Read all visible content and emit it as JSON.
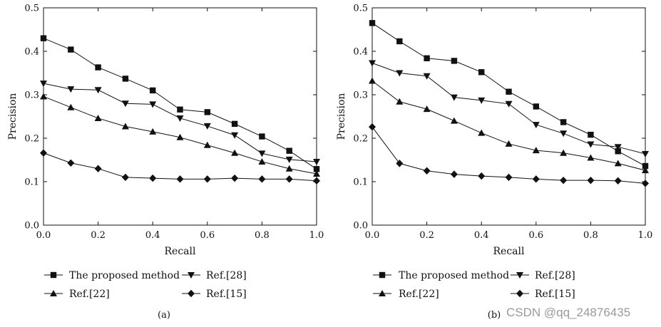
{
  "chart_data": [
    {
      "type": "line",
      "panel_label": "(a)",
      "title": "",
      "xlabel": "Recall",
      "ylabel": "Precision",
      "xlim": [
        0,
        1
      ],
      "ylim": [
        0,
        0.5
      ],
      "x_ticks": [
        "0.0",
        "0.2",
        "0.4",
        "0.6",
        "0.8",
        "1.0"
      ],
      "y_ticks": [
        "0.0",
        "0.1",
        "0.2",
        "0.3",
        "0.4",
        "0.5"
      ],
      "grid": false,
      "legend_position": "bottom",
      "x": [
        0.0,
        0.1,
        0.2,
        0.3,
        0.4,
        0.5,
        0.6,
        0.7,
        0.8,
        0.9,
        1.0
      ],
      "series": [
        {
          "name": "The proposed method",
          "marker": "square",
          "values": [
            0.43,
            0.404,
            0.363,
            0.337,
            0.31,
            0.266,
            0.26,
            0.233,
            0.204,
            0.171,
            0.129
          ]
        },
        {
          "name": "Ref.[28]",
          "marker": "triangle-down",
          "values": [
            0.326,
            0.313,
            0.311,
            0.28,
            0.278,
            0.246,
            0.228,
            0.207,
            0.165,
            0.151,
            0.146
          ]
        },
        {
          "name": "Ref.[22]",
          "marker": "triangle-up",
          "values": [
            0.296,
            0.271,
            0.246,
            0.227,
            0.215,
            0.202,
            0.184,
            0.166,
            0.146,
            0.13,
            0.118
          ]
        },
        {
          "name": "Ref.[15]",
          "marker": "diamond",
          "values": [
            0.166,
            0.143,
            0.13,
            0.11,
            0.108,
            0.106,
            0.106,
            0.108,
            0.106,
            0.106,
            0.102
          ]
        }
      ]
    },
    {
      "type": "line",
      "panel_label": "(b)",
      "title": "",
      "xlabel": "Recall",
      "ylabel": "Precision",
      "xlim": [
        0,
        1
      ],
      "ylim": [
        0,
        0.5
      ],
      "x_ticks": [
        "0.0",
        "0.2",
        "0.4",
        "0.6",
        "0.8",
        "1.0"
      ],
      "y_ticks": [
        "0.0",
        "0.1",
        "0.2",
        "0.3",
        "0.4",
        "0.5"
      ],
      "grid": false,
      "legend_position": "bottom",
      "x": [
        0.0,
        0.1,
        0.2,
        0.3,
        0.4,
        0.5,
        0.6,
        0.7,
        0.8,
        0.9,
        1.0
      ],
      "series": [
        {
          "name": "The proposed method",
          "marker": "square",
          "values": [
            0.465,
            0.423,
            0.384,
            0.378,
            0.352,
            0.307,
            0.273,
            0.237,
            0.208,
            0.17,
            0.136
          ]
        },
        {
          "name": "Ref.[28]",
          "marker": "triangle-down",
          "values": [
            0.373,
            0.35,
            0.343,
            0.294,
            0.287,
            0.279,
            0.231,
            0.211,
            0.186,
            0.18,
            0.164
          ]
        },
        {
          "name": "Ref.[22]",
          "marker": "triangle-up",
          "values": [
            0.332,
            0.284,
            0.267,
            0.24,
            0.212,
            0.187,
            0.172,
            0.166,
            0.155,
            0.142,
            0.126
          ]
        },
        {
          "name": "Ref.[15]",
          "marker": "diamond",
          "values": [
            0.226,
            0.142,
            0.125,
            0.117,
            0.113,
            0.11,
            0.106,
            0.103,
            0.103,
            0.102,
            0.096
          ]
        }
      ]
    }
  ],
  "watermark": "CSDN @qq_24876435"
}
